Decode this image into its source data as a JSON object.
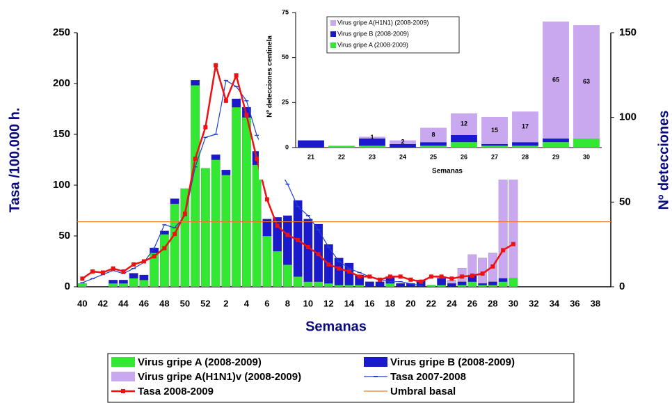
{
  "chart_data": [
    {
      "type": "bar",
      "stacked": true,
      "ylabel": "Tasa /100.000 h.",
      "y2label": "Nº detecciones",
      "xlabel": "Semanas",
      "categories": [
        "40",
        null,
        "42",
        null,
        "44",
        null,
        "46",
        null,
        "48",
        null,
        "50",
        null,
        "52",
        null,
        "2",
        null,
        "4",
        null,
        "6",
        null,
        "8",
        null,
        "10",
        null,
        "12",
        null,
        "14",
        null,
        "16",
        null,
        "18",
        null,
        "20",
        null,
        "22",
        null,
        "24",
        null,
        "26",
        null,
        "28",
        null,
        "30",
        null,
        "32",
        null,
        "34",
        null,
        "36",
        null,
        "38",
        null
      ],
      "ylim": [
        0,
        250
      ],
      "yticks": [
        0,
        50,
        100,
        150,
        200,
        250
      ],
      "y2lim": [
        0,
        150
      ],
      "y2ticks": [
        0,
        50,
        100,
        150
      ],
      "series": [
        {
          "name": "Virus gripe A (2008-2009)",
          "type": "bar",
          "axis": "y2",
          "color": "#33e833",
          "values": [
            2,
            0,
            0,
            2,
            2,
            5,
            4,
            20,
            31,
            49,
            58,
            119,
            70,
            75,
            66,
            106,
            100,
            72,
            30,
            21,
            13,
            6,
            3,
            3,
            2,
            1,
            1,
            1,
            0,
            0,
            2,
            0,
            0,
            0,
            1,
            1,
            0,
            1,
            3,
            1,
            1,
            3,
            5,
            null,
            null,
            null,
            null,
            null,
            null,
            null,
            null,
            null
          ]
        },
        {
          "name": "Virus gripe B (2008-2009)",
          "type": "bar",
          "axis": "y2",
          "color": "#1a1acc",
          "values": [
            0,
            0,
            0,
            2,
            2,
            3,
            3,
            3,
            2,
            3,
            0,
            3,
            0,
            3,
            3,
            5,
            6,
            8,
            10,
            20,
            29,
            45,
            37,
            34,
            23,
            16,
            13,
            6,
            3,
            3,
            4,
            2,
            2,
            4,
            0,
            4,
            2,
            2,
            4,
            1,
            2,
            2,
            0,
            null,
            null,
            null,
            null,
            null,
            null,
            null,
            null,
            null
          ]
        },
        {
          "name": "Virus gripe A(H1N1)v (2008-2009)",
          "type": "bar",
          "axis": "y2",
          "color": "#c9a8f0",
          "values": [
            0,
            0,
            0,
            0,
            0,
            0,
            0,
            0,
            0,
            0,
            0,
            0,
            0,
            0,
            0,
            0,
            0,
            0,
            0,
            0,
            0,
            0,
            0,
            0,
            0,
            0,
            0,
            0,
            0,
            0,
            0,
            0,
            0,
            0,
            0,
            1,
            2,
            8,
            12,
            15,
            17,
            65,
            63,
            null,
            null,
            null,
            null,
            null,
            null,
            null,
            null,
            null
          ]
        },
        {
          "name": "Tasa 2007-2008",
          "type": "line",
          "axis": "y",
          "color": "#1f3fd0",
          "marker": "dash",
          "values": [
            4,
            8,
            12,
            16,
            13,
            18,
            24,
            38,
            61,
            58,
            70,
            118,
            147,
            150,
            203,
            197,
            183,
            149,
            128,
            118,
            101,
            79,
            70,
            56,
            39,
            25,
            18,
            14,
            10,
            7,
            5,
            5,
            3,
            1,
            null,
            null,
            null,
            null,
            null,
            null,
            null,
            null,
            null,
            null,
            null,
            null,
            null,
            null,
            null,
            null,
            null,
            null
          ]
        },
        {
          "name": "Tasa 2008-2009",
          "type": "line",
          "axis": "y",
          "color": "#ee1111",
          "marker": "square",
          "values": [
            8,
            15,
            14,
            18,
            15,
            22,
            25,
            30,
            38,
            52,
            72,
            126,
            157,
            218,
            183,
            208,
            169,
            126,
            86,
            60,
            51,
            46,
            39,
            32,
            22,
            18,
            15,
            10,
            10,
            7,
            10,
            10,
            7,
            5,
            10,
            10,
            8,
            10,
            11,
            13,
            20,
            36,
            42,
            null,
            null,
            null,
            null,
            null,
            null,
            null,
            null,
            null
          ]
        },
        {
          "name": "Umbral basal",
          "type": "hline",
          "axis": "y",
          "color": "#f07820",
          "value": 64
        }
      ]
    },
    {
      "type": "bar",
      "stacked": true,
      "ylabel": "Nº detecciones centinela",
      "xlabel": "Semanas",
      "categories": [
        "21",
        "22",
        "23",
        "24",
        "25",
        "26",
        "27",
        "28",
        "29",
        "30"
      ],
      "ylim": [
        0,
        75
      ],
      "yticks": [
        0,
        25,
        50,
        75
      ],
      "series": [
        {
          "name": "Virus gripe A (2008-2009)",
          "type": "bar",
          "color": "#33e833",
          "values": [
            0,
            1,
            1,
            0,
            1,
            3,
            1,
            1,
            3,
            5
          ]
        },
        {
          "name": "Virus gripe B (2008-2009)",
          "type": "bar",
          "color": "#1a1acc",
          "values": [
            4,
            0,
            4,
            2,
            2,
            4,
            1,
            2,
            2,
            0
          ]
        },
        {
          "name": "Virus gripe A(H1N1) (2008-2009)",
          "type": "bar",
          "color": "#c9a8f0",
          "labels": true,
          "values": [
            0,
            0,
            1,
            2,
            8,
            12,
            15,
            17,
            65,
            63
          ]
        }
      ]
    }
  ]
}
